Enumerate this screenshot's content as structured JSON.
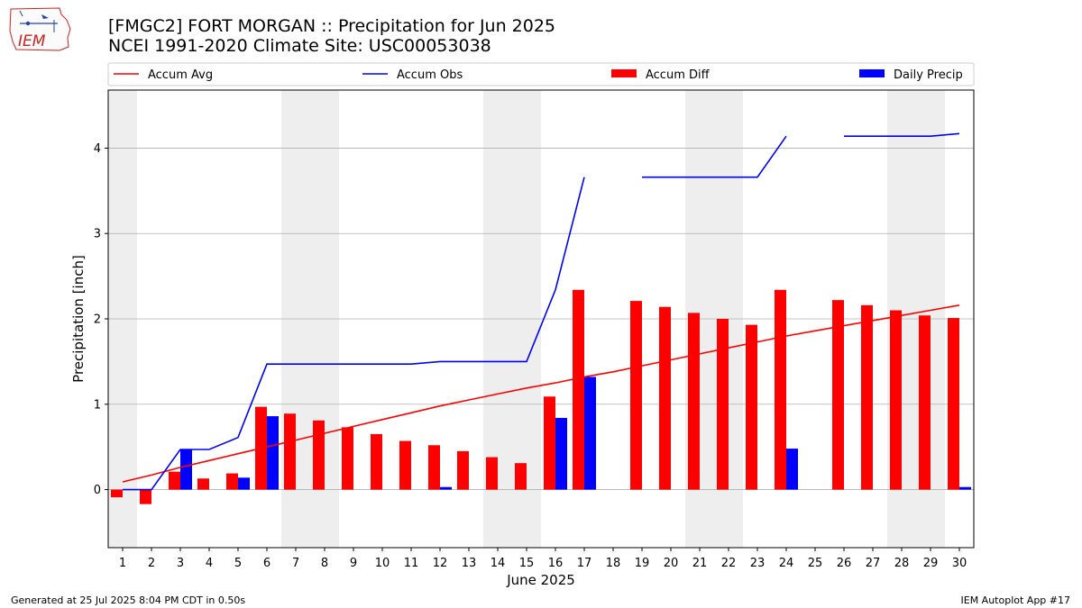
{
  "header": {
    "title_line1": "[FMGC2] FORT MORGAN :: Precipitation for Jun 2025",
    "title_line2": "NCEI 1991-2020 Climate Site: USC00053038",
    "logo_text": "IEM"
  },
  "footer": {
    "generated": "Generated at 25 Jul 2025 8:04 PM CDT in 0.50s",
    "app": "IEM Autoplot App #17"
  },
  "chart_data": {
    "type": "bar",
    "xlabel": "June 2025",
    "ylabel": "Precipitation [inch]",
    "ylim": [
      -0.68,
      4.68
    ],
    "yticks": [
      0,
      1,
      2,
      3,
      4
    ],
    "grid": "horizontal",
    "legend_placement": "top",
    "days": [
      1,
      2,
      3,
      4,
      5,
      6,
      7,
      8,
      9,
      10,
      11,
      12,
      13,
      14,
      15,
      16,
      17,
      18,
      19,
      20,
      21,
      22,
      23,
      24,
      25,
      26,
      27,
      28,
      29,
      30
    ],
    "weekend_days": [
      1,
      7,
      8,
      14,
      15,
      21,
      22,
      28,
      29
    ],
    "legend": [
      {
        "label": "Accum Avg",
        "kind": "line",
        "color": "#ff0000"
      },
      {
        "label": "Accum Obs",
        "kind": "line",
        "color": "#0000ff"
      },
      {
        "label": "Accum Diff",
        "kind": "bar",
        "color": "#ff0000"
      },
      {
        "label": "Daily Precip",
        "kind": "bar",
        "color": "#0000ff"
      }
    ],
    "accum_avg": [
      0.09,
      0.17,
      0.26,
      0.34,
      0.42,
      0.5,
      0.58,
      0.66,
      0.74,
      0.82,
      0.9,
      0.98,
      1.05,
      1.12,
      1.19,
      1.25,
      1.32,
      1.38,
      1.45,
      1.52,
      1.59,
      1.66,
      1.73,
      1.8,
      1.86,
      1.92,
      1.98,
      2.04,
      2.1,
      2.16
    ],
    "accum_obs": [
      0.0,
      0.0,
      0.47,
      0.47,
      0.61,
      1.47,
      1.47,
      1.47,
      1.47,
      1.47,
      1.47,
      1.5,
      1.5,
      1.5,
      1.5,
      2.34,
      3.66,
      null,
      3.66,
      3.66,
      3.66,
      3.66,
      3.66,
      4.14,
      null,
      4.14,
      4.14,
      4.14,
      4.14,
      4.17
    ],
    "accum_diff": [
      -0.09,
      -0.17,
      0.21,
      0.13,
      0.19,
      0.97,
      0.89,
      0.81,
      0.73,
      0.65,
      0.57,
      0.52,
      0.45,
      0.38,
      0.31,
      1.09,
      2.34,
      null,
      2.21,
      2.14,
      2.07,
      2.0,
      1.93,
      2.34,
      null,
      2.22,
      2.16,
      2.1,
      2.04,
      2.01
    ],
    "daily_precip": [
      0,
      0,
      0.47,
      0,
      0.14,
      0.86,
      0,
      0,
      0,
      0,
      0,
      0.03,
      0,
      0,
      0,
      0.84,
      1.32,
      null,
      0,
      0,
      0,
      0,
      0,
      0.48,
      null,
      0,
      0,
      0,
      0,
      0.03
    ],
    "colors": {
      "avg": "#ff0000",
      "obs": "#0000ff",
      "diff": "#ff0000",
      "daily": "#0000ff",
      "weekend": "#eeeeee",
      "grid": "#b0b0b0"
    }
  }
}
